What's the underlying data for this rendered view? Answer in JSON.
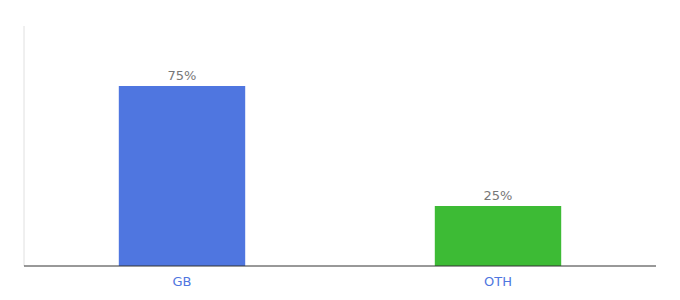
{
  "chart_data": {
    "type": "bar",
    "categories": [
      "GB",
      "OTH"
    ],
    "values": [
      75,
      25
    ],
    "value_labels": [
      "75%",
      "25%"
    ],
    "colors": [
      "#4f76e0",
      "#3dbb35"
    ],
    "ylim": [
      0,
      100
    ],
    "data_labels": true,
    "tick_labels": "x"
  }
}
